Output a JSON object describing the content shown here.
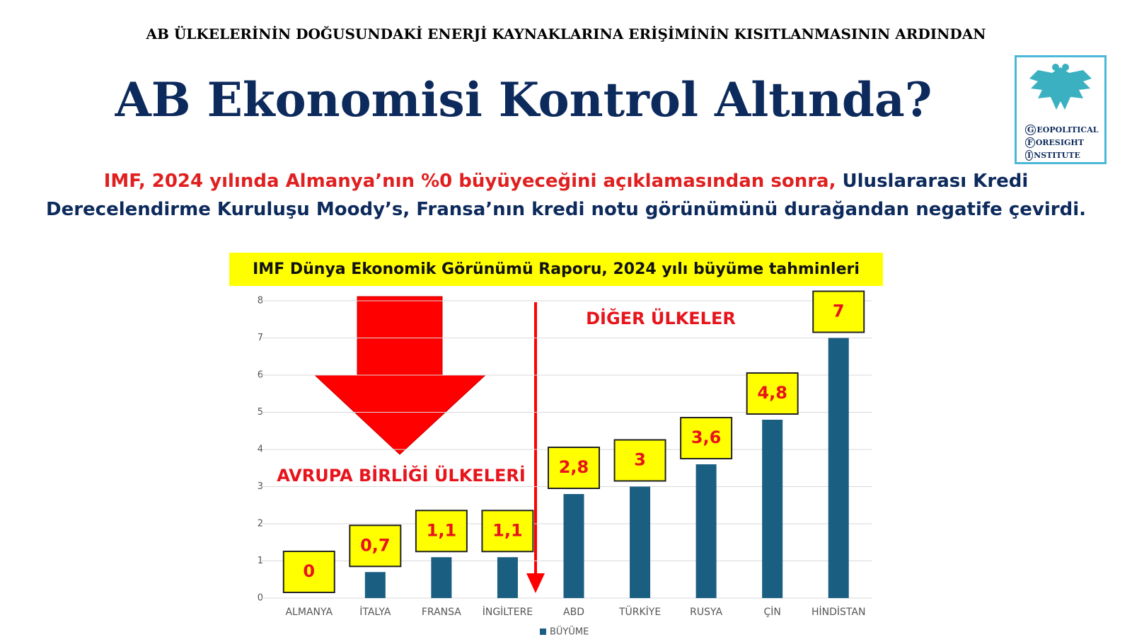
{
  "header": {
    "kicker": "AB ÜLKELERİNİN DOĞUSUNDAKİ ENERJİ KAYNAKLARINA ERİŞİMİNİN KISITLANMASININ ARDINDAN",
    "title": "AB Ekonomisi Kontrol Altında?",
    "intro": [
      "IMF, 2024 yılında Almanya’nın %0 büyüyeceğini açıklamasından sonra,",
      "Uluslararası Kredi Derecelendirme Kuruluşu Moody’s, Fransa’nın kredi notu görünümünü durağandan negatife çevirdi."
    ]
  },
  "logo": {
    "lines": [
      "GEOPOLITICAL",
      "FORESIGHT",
      "INSTITUTE"
    ]
  },
  "chart_data": {
    "type": "bar",
    "title": "IMF Dünya Ekonomik Görünümü Raporu, 2024 yılı büyüme tahminleri",
    "categories": [
      "ALMANYA",
      "İTALYA",
      "FRANSA",
      "İNGİLTERE",
      "ABD",
      "TÜRKİYE",
      "RUSYA",
      "ÇİN",
      "HİNDİSTAN"
    ],
    "series": [
      {
        "name": "BÜYÜME",
        "color": "#1a5e82",
        "values": [
          0,
          0.7,
          1.1,
          1.1,
          2.8,
          3,
          3.6,
          4.8,
          7
        ],
        "value_labels": [
          "0",
          "0,7",
          "1,1",
          "1,1",
          "2,8",
          "3",
          "3,6",
          "4,8",
          "7"
        ]
      }
    ],
    "annotations": [
      "AVRUPA BİRLİĞİ ÜLKELERİ",
      "DİĞER ÜLKELER"
    ],
    "ylim": [
      0,
      8
    ],
    "yticks": [
      0,
      1,
      2,
      3,
      4,
      5,
      6,
      7,
      8
    ],
    "grid": true,
    "legend": "bottom"
  }
}
